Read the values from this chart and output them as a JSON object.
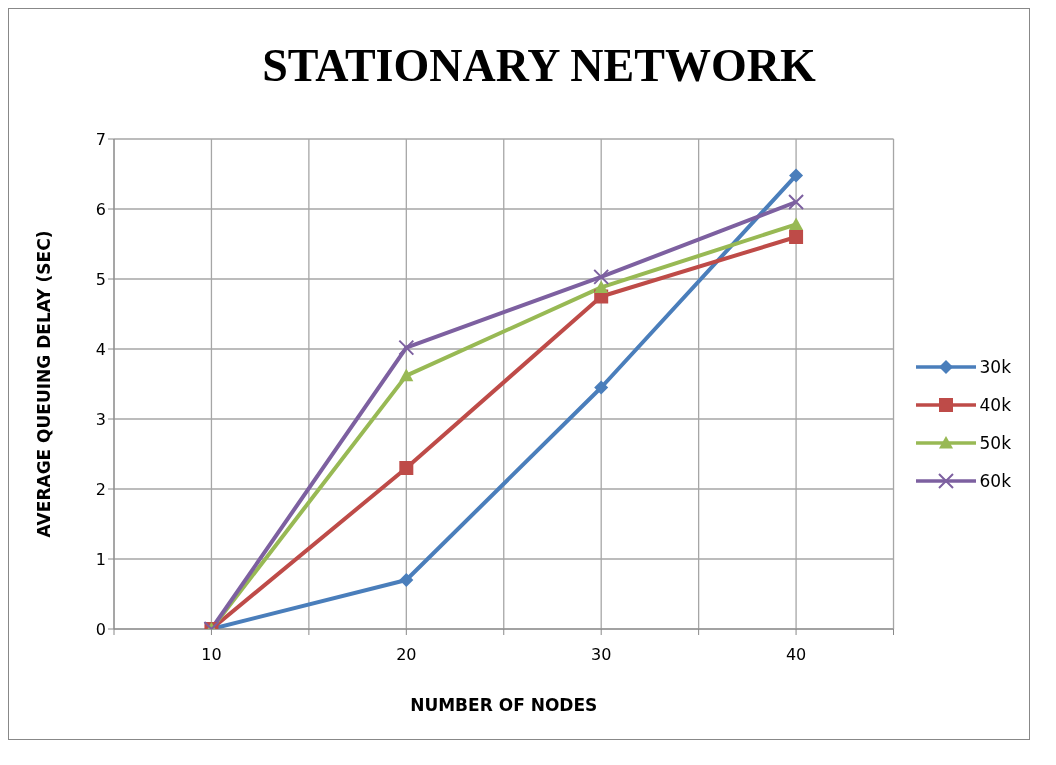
{
  "chart_data": {
    "type": "line",
    "title": "STATIONARY NETWORK",
    "xlabel": "NUMBER OF NODES",
    "ylabel": "AVERAGE QUEUING DELAY (SEC)",
    "x": [
      10,
      20,
      30,
      40
    ],
    "xlim": [
      5,
      45
    ],
    "xticks": [
      {
        "value": 5,
        "label": null
      },
      10,
      {
        "value": 15,
        "label": null
      },
      20,
      {
        "value": 25,
        "label": null
      },
      30,
      {
        "value": 35,
        "label": null
      },
      40,
      {
        "value": 45,
        "label": null
      }
    ],
    "ylim": [
      0,
      7
    ],
    "yticks": [
      0,
      1,
      2,
      3,
      4,
      5,
      6,
      7
    ],
    "grid": true,
    "legend": "right",
    "line_style": "solid",
    "series": [
      {
        "name": "30k",
        "color": "#4a7ebb",
        "marker": "diamond",
        "values": [
          0,
          0.7,
          3.45,
          6.48
        ]
      },
      {
        "name": "40k",
        "color": "#be4b48",
        "marker": "square",
        "values": [
          0,
          2.3,
          4.75,
          5.6
        ]
      },
      {
        "name": "50k",
        "color": "#98b954",
        "marker": "triangle",
        "values": [
          0,
          3.62,
          4.88,
          5.78
        ]
      },
      {
        "name": "60k",
        "color": "#7d60a0",
        "marker": "cross",
        "values": [
          0,
          4.02,
          5.03,
          6.1
        ]
      }
    ]
  }
}
